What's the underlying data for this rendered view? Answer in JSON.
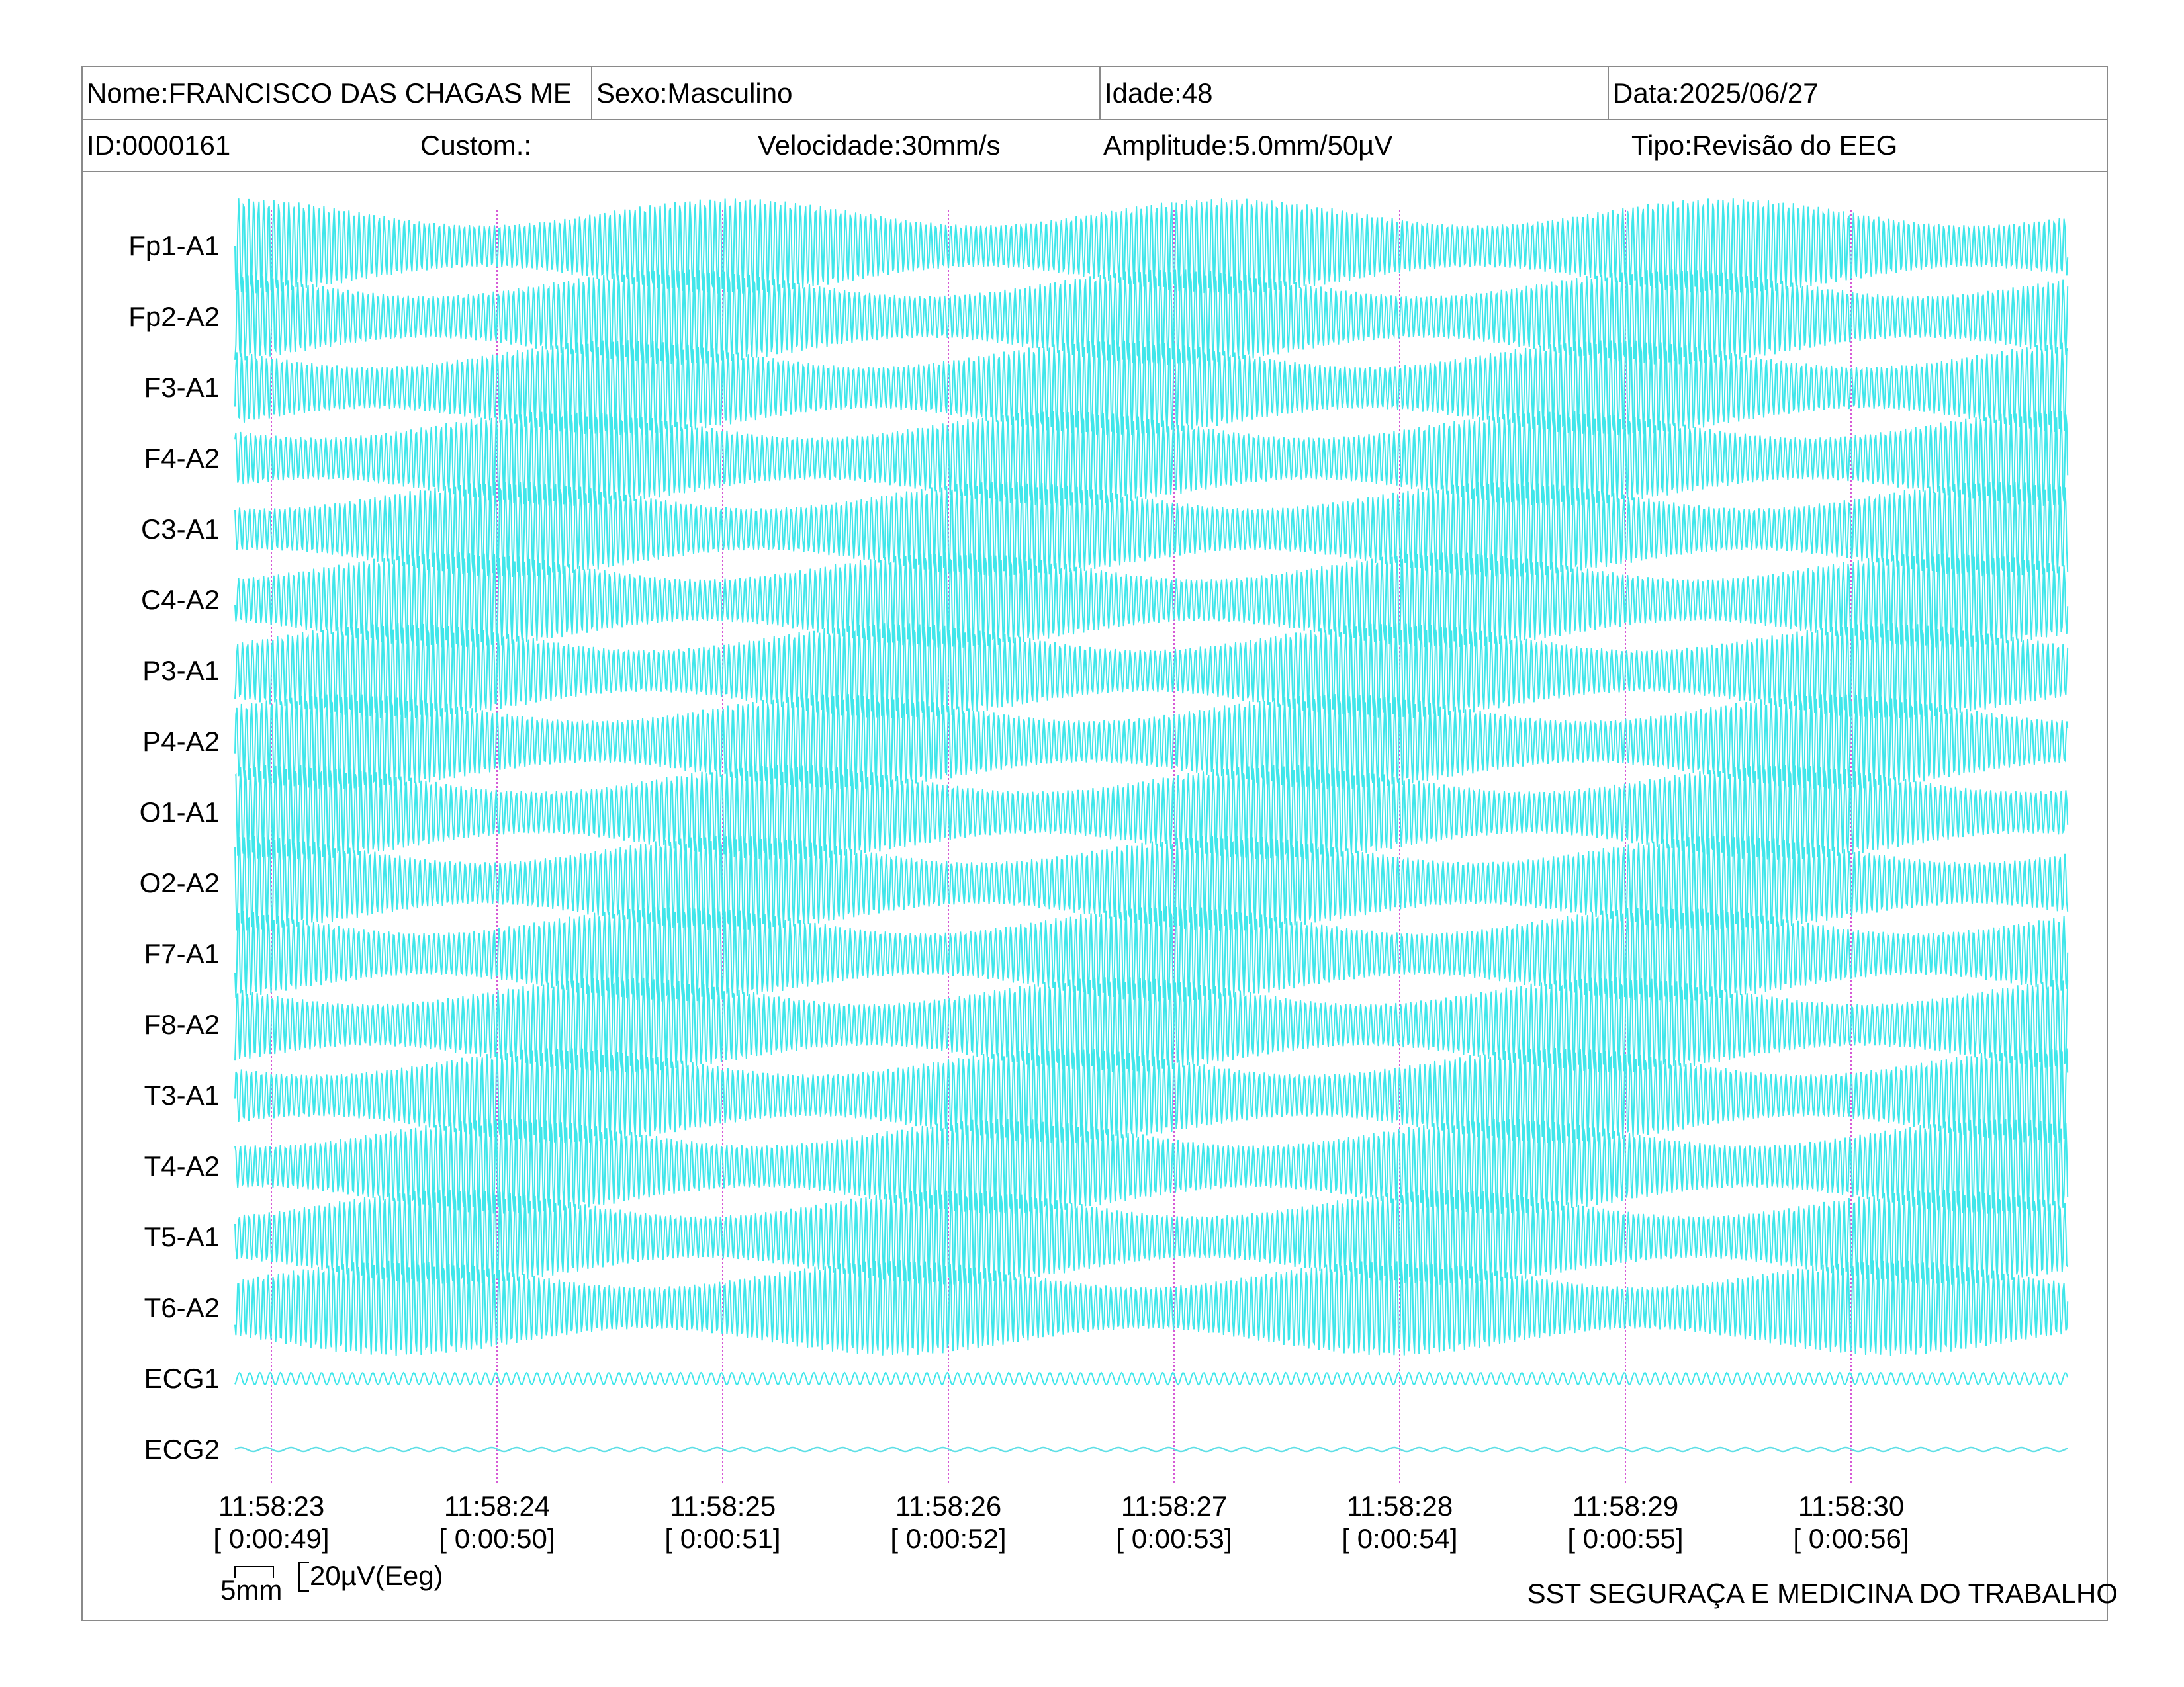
{
  "header": {
    "name": "Nome:FRANCISCO DAS CHAGAS ME",
    "sex": "Sexo:Masculino",
    "age": "Idade:48",
    "date": "Data:2025/06/27",
    "id": "ID:0000161",
    "custom": "Custom.:",
    "speed": "Velocidade:30mm/s",
    "amplitude": "Amplitude:5.0mm/50µV",
    "type": "Tipo:Revisão do EEG"
  },
  "channels": [
    "Fp1-A1",
    "Fp2-A2",
    "F3-A1",
    "F4-A2",
    "C3-A1",
    "C4-A2",
    "P3-A1",
    "P4-A2",
    "O1-A1",
    "O2-A2",
    "F7-A1",
    "F8-A2",
    "T3-A1",
    "T4-A2",
    "T5-A1",
    "T6-A2",
    "ECG1",
    "ECG2"
  ],
  "time_marks": [
    {
      "clock": "11:58:23",
      "elapsed": "[ 0:00:49]"
    },
    {
      "clock": "11:58:24",
      "elapsed": "[ 0:00:50]"
    },
    {
      "clock": "11:58:25",
      "elapsed": "[ 0:00:51]"
    },
    {
      "clock": "11:58:26",
      "elapsed": "[ 0:00:52]"
    },
    {
      "clock": "11:58:27",
      "elapsed": "[ 0:00:53]"
    },
    {
      "clock": "11:58:28",
      "elapsed": "[ 0:00:54]"
    },
    {
      "clock": "11:58:29",
      "elapsed": "[ 0:00:55]"
    },
    {
      "clock": "11:58:30",
      "elapsed": "[ 0:00:56]"
    }
  ],
  "calibration": {
    "time": "5mm",
    "amplitude": "20µV(Eeg)"
  },
  "footer": {
    "company": "SST SEGURAÇA E MEDICINA DO TRABALHO"
  },
  "colors": {
    "trace": "#3fe6ea",
    "ecg2_trace": "#5fdfe6",
    "time_marker": "#d65ad6",
    "border": "#8a8a8a"
  }
}
